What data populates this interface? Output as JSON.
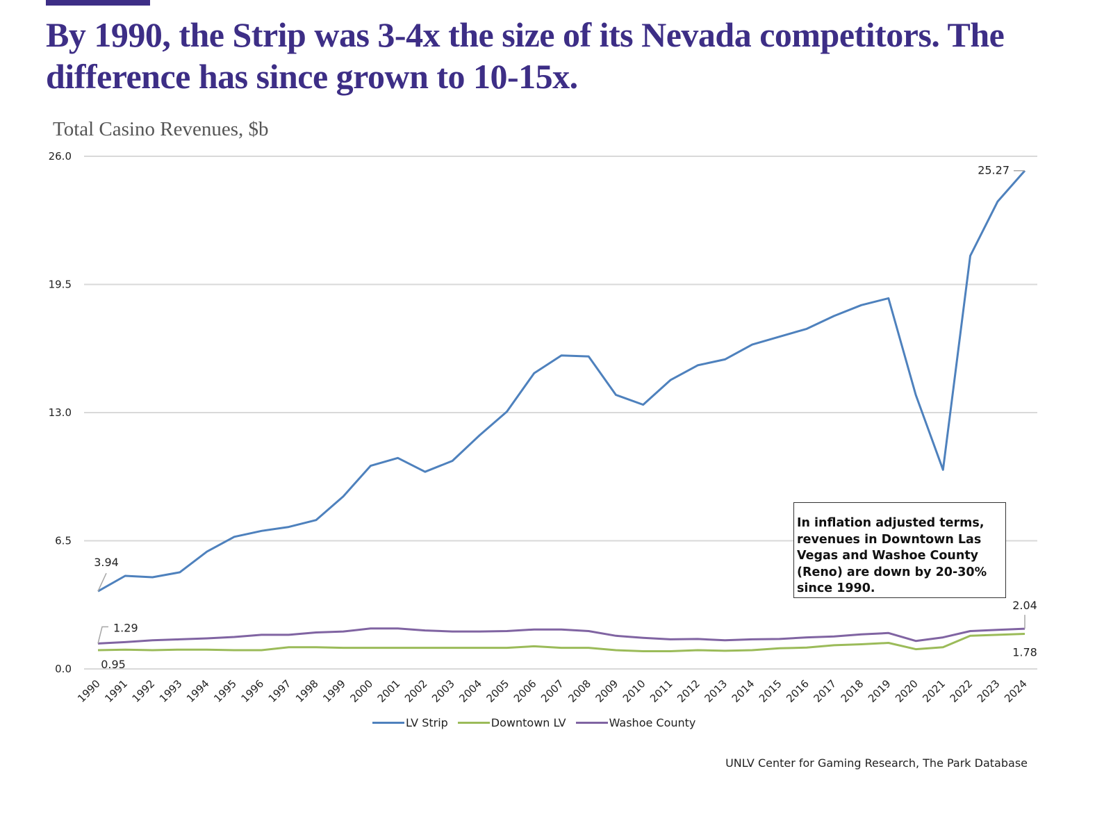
{
  "headline": "By 1990, the Strip was 3-4x the size of its Nevada competitors.  The difference has since grown to 10-15x.",
  "annotation": "In inflation adjusted terms, revenues in Downtown Las Vegas and Washoe County (Reno) are down by 20-30% since 1990.",
  "source": "UNLV Center for Gaming Research, The Park Database",
  "chart_data": {
    "type": "line",
    "title": "Total Casino Revenues, $b",
    "xlabel": "",
    "ylabel": "Total Casino Revenues, $b",
    "ylim": [
      0,
      26
    ],
    "yticks": [
      "0.0",
      "6.5",
      "13.0",
      "19.5",
      "26.0"
    ],
    "ytick_values": [
      0,
      6.5,
      13,
      19.5,
      26
    ],
    "grid": true,
    "legend_position": "bottom",
    "x": [
      "1990",
      "1991",
      "1992",
      "1993",
      "1994",
      "1995",
      "1996",
      "1997",
      "1998",
      "1999",
      "2000",
      "2001",
      "2002",
      "2003",
      "2004",
      "2005",
      "2006",
      "2007",
      "2008",
      "2009",
      "2010",
      "2011",
      "2012",
      "2013",
      "2014",
      "2015",
      "2016",
      "2017",
      "2018",
      "2019",
      "2020",
      "2021",
      "2022",
      "2023",
      "2024"
    ],
    "series": [
      {
        "name": "LV Strip",
        "color": "#4e81bd",
        "values": [
          3.94,
          4.72,
          4.65,
          4.9,
          5.95,
          6.7,
          7.0,
          7.2,
          7.55,
          8.75,
          10.3,
          10.7,
          10.0,
          10.55,
          11.85,
          13.05,
          15.0,
          15.9,
          15.85,
          13.9,
          13.4,
          14.65,
          15.4,
          15.7,
          16.45,
          16.85,
          17.25,
          17.9,
          18.45,
          18.8,
          13.9,
          10.1,
          20.95,
          23.7,
          25.27
        ]
      },
      {
        "name": "Downtown LV",
        "color": "#9bbb59",
        "values": [
          0.95,
          0.98,
          0.95,
          0.98,
          0.98,
          0.95,
          0.95,
          1.1,
          1.1,
          1.07,
          1.07,
          1.07,
          1.07,
          1.07,
          1.07,
          1.07,
          1.15,
          1.07,
          1.07,
          0.95,
          0.9,
          0.9,
          0.95,
          0.92,
          0.95,
          1.05,
          1.08,
          1.2,
          1.25,
          1.32,
          1.0,
          1.1,
          1.68,
          1.73,
          1.78
        ]
      },
      {
        "name": "Washoe County",
        "color": "#8064a2",
        "values": [
          1.29,
          1.36,
          1.45,
          1.5,
          1.55,
          1.62,
          1.73,
          1.73,
          1.85,
          1.9,
          2.05,
          2.05,
          1.95,
          1.9,
          1.9,
          1.92,
          2.0,
          2.0,
          1.92,
          1.68,
          1.58,
          1.5,
          1.52,
          1.45,
          1.5,
          1.52,
          1.6,
          1.65,
          1.75,
          1.82,
          1.42,
          1.6,
          1.92,
          1.98,
          2.04
        ]
      }
    ],
    "data_labels": [
      {
        "series": "LV Strip",
        "x": "1990",
        "text": "3.94"
      },
      {
        "series": "LV Strip",
        "x": "2024",
        "text": "25.27"
      },
      {
        "series": "Washoe County",
        "x": "1990",
        "text": "1.29"
      },
      {
        "series": "Downtown LV",
        "x": "1990",
        "text": "0.95"
      },
      {
        "series": "Washoe County",
        "x": "2024",
        "text": "2.04"
      },
      {
        "series": "Downtown LV",
        "x": "2024",
        "text": "1.78"
      }
    ]
  }
}
